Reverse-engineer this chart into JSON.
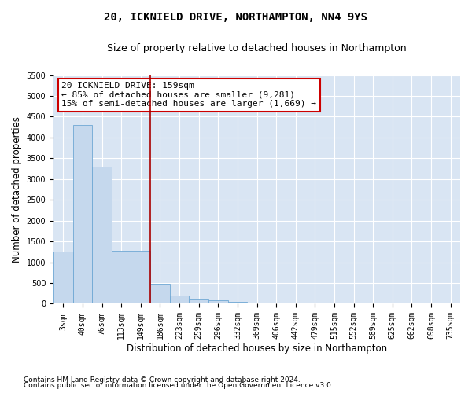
{
  "title": "20, ICKNIELD DRIVE, NORTHAMPTON, NN4 9YS",
  "subtitle": "Size of property relative to detached houses in Northampton",
  "xlabel": "Distribution of detached houses by size in Northampton",
  "ylabel": "Number of detached properties",
  "footnote1": "Contains HM Land Registry data © Crown copyright and database right 2024.",
  "footnote2": "Contains public sector information licensed under the Open Government Licence v3.0.",
  "bar_color": "#c5d8ed",
  "bar_edge_color": "#6fa8d4",
  "vline_color": "#aa0000",
  "vline_x": 4.5,
  "annotation_text": "20 ICKNIELD DRIVE: 159sqm\n← 85% of detached houses are smaller (9,281)\n15% of semi-detached houses are larger (1,669) →",
  "annotation_box_facecolor": "#ffffff",
  "annotation_box_edgecolor": "#cc0000",
  "categories": [
    "3sqm",
    "40sqm",
    "76sqm",
    "113sqm",
    "149sqm",
    "186sqm",
    "223sqm",
    "259sqm",
    "296sqm",
    "332sqm",
    "369sqm",
    "406sqm",
    "442sqm",
    "479sqm",
    "515sqm",
    "552sqm",
    "589sqm",
    "625sqm",
    "662sqm",
    "698sqm",
    "735sqm"
  ],
  "values": [
    1250,
    4300,
    3290,
    1270,
    1270,
    490,
    200,
    110,
    80,
    50,
    0,
    0,
    0,
    0,
    0,
    0,
    0,
    0,
    0,
    0,
    0
  ],
  "ylim": [
    0,
    5500
  ],
  "yticks": [
    0,
    500,
    1000,
    1500,
    2000,
    2500,
    3000,
    3500,
    4000,
    4500,
    5000,
    5500
  ],
  "fig_bg_color": "#ffffff",
  "plot_bg_color": "#d9e5f3",
  "grid_color": "#ffffff",
  "title_fontsize": 10,
  "subtitle_fontsize": 9,
  "axis_label_fontsize": 8.5,
  "tick_fontsize": 7,
  "annot_fontsize": 8,
  "footnote_fontsize": 6.5
}
